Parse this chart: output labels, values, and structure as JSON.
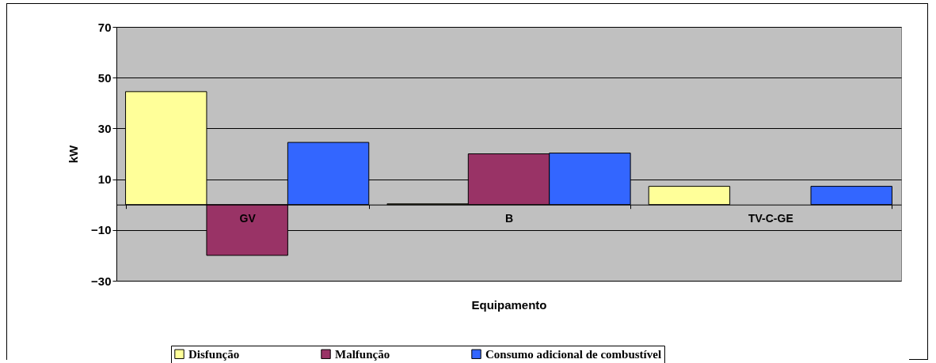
{
  "chart_data": {
    "type": "bar",
    "xlabel": "Equipamento",
    "ylabel": "kW",
    "categories": [
      "GV",
      "B",
      "TV-C-GE"
    ],
    "series": [
      {
        "name": "Disfunção",
        "color": "#ffff99",
        "values": [
          44.5,
          0.3,
          7.2
        ]
      },
      {
        "name": "Malfunção",
        "color": "#993366",
        "values": [
          -20,
          20,
          null
        ]
      },
      {
        "name": "Consumo adicional de combustível",
        "color": "#3366ff",
        "values": [
          24.5,
          20.3,
          7.2
        ]
      }
    ],
    "ylim": [
      -30,
      70
    ],
    "yticks": [
      -30,
      -10,
      10,
      30,
      50,
      70
    ],
    "grid": "y",
    "legend": "bottom"
  }
}
